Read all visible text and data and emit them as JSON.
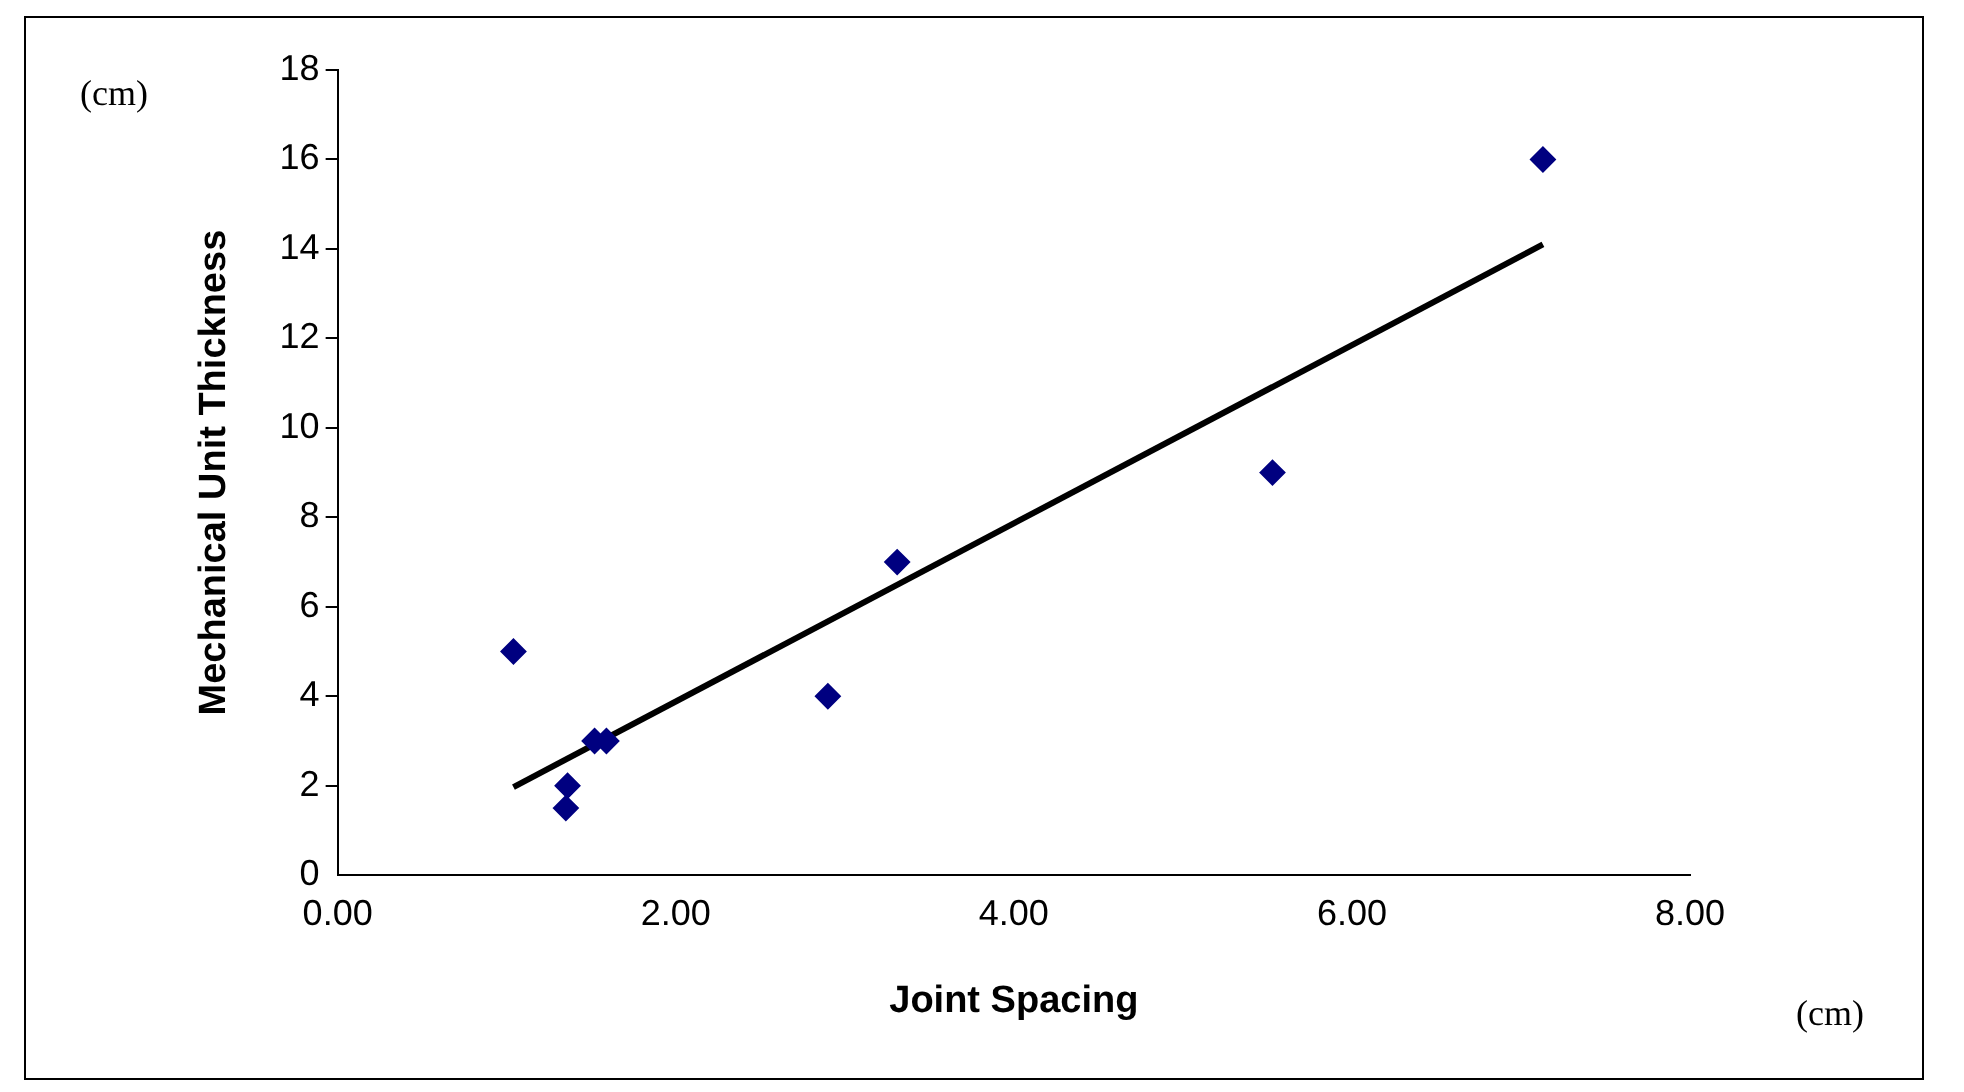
{
  "chart_data": {
    "type": "scatter",
    "xlabel": "Joint Spacing",
    "ylabel": "Mechanical Unit Thickness",
    "annotations": [
      "(cm)",
      "(cm)"
    ],
    "series": [
      {
        "type": "scatter",
        "color": "#000080",
        "marker": "diamond",
        "x": [
          1.04,
          1.35,
          1.36,
          1.52,
          1.59,
          2.9,
          3.31,
          5.53,
          7.13
        ],
        "values": [
          5,
          1.5,
          2,
          3,
          3,
          4,
          7,
          9,
          16
        ]
      },
      {
        "type": "line",
        "color": "#000000",
        "marker": "none",
        "x": [
          1.04,
          7.13
        ],
        "values": [
          1.97,
          14.1
        ]
      }
    ],
    "xlim": [
      0,
      8
    ],
    "xticks": [
      {
        "value": 0,
        "label": "0.00"
      },
      {
        "value": 2,
        "label": "2.00"
      },
      {
        "value": 4,
        "label": "4.00"
      },
      {
        "value": 6,
        "label": "6.00"
      },
      {
        "value": 8,
        "label": "8.00"
      }
    ],
    "ylim": [
      0,
      18
    ],
    "yticks": [
      0,
      2,
      4,
      6,
      8,
      10,
      12,
      14,
      16,
      18
    ],
    "grid": false,
    "legend": false
  }
}
